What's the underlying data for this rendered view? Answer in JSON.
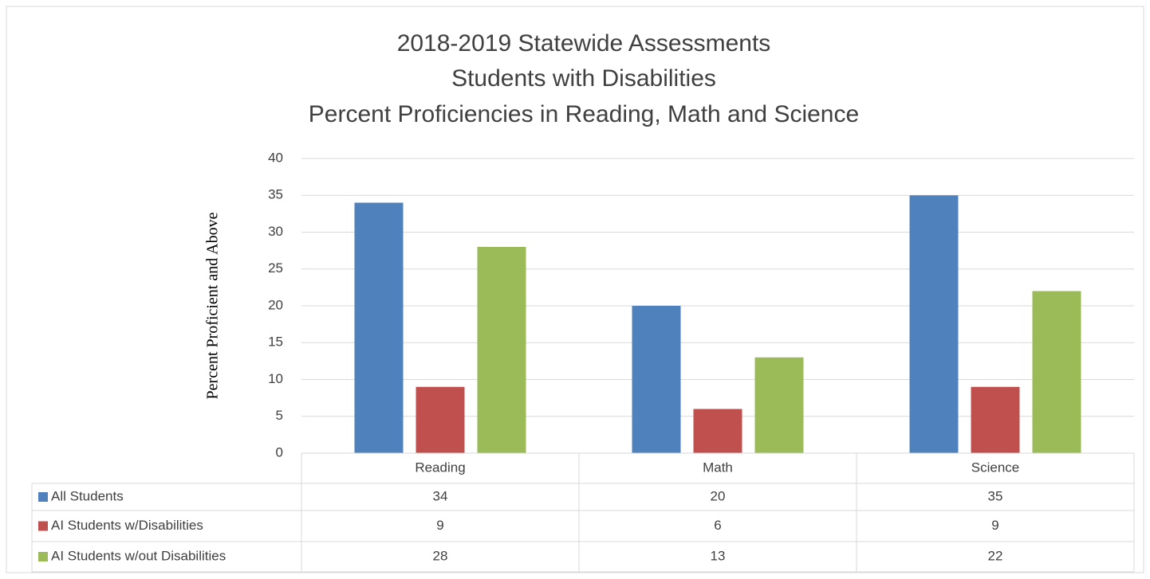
{
  "chart_data": {
    "type": "bar",
    "title": [
      "2018-2019 Statewide Assessments",
      "Students with Disabilities",
      "Percent Proficiencies in Reading, Math and Science"
    ],
    "y_label": "Percent Proficient and Above",
    "categories": [
      "Reading",
      "Math",
      "Science"
    ],
    "series": [
      {
        "name": "All Students",
        "color": "#4f81bd",
        "values": [
          34,
          20,
          35
        ]
      },
      {
        "name": "AI Students w/Disabilities",
        "color": "#c0504d",
        "values": [
          9,
          6,
          9
        ]
      },
      {
        "name": "AI Students w/out Disabilities",
        "color": "#9bbb59",
        "values": [
          28,
          13,
          22
        ]
      }
    ],
    "ylim": [
      0,
      40
    ],
    "yticks": [
      0,
      5,
      10,
      15,
      20,
      25,
      30,
      35,
      40
    ],
    "grid": true,
    "data_table": true
  }
}
